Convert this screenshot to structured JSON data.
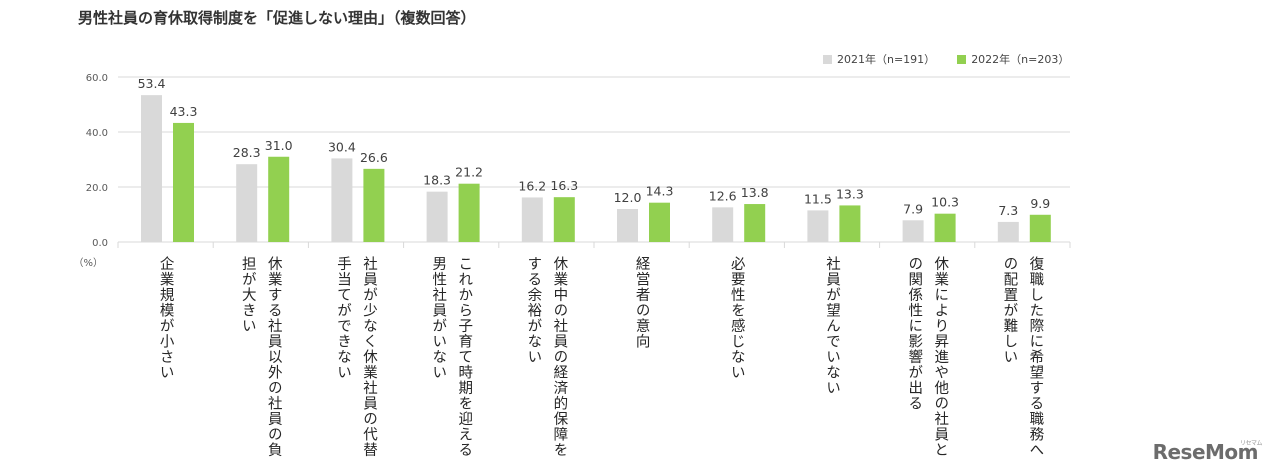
{
  "title": "男性社員の育休取得制度を「促進しない理由」（複数回答）",
  "legend": {
    "series_2021": "2021年（n=191）",
    "series_2022": "2022年（n=203）"
  },
  "colors": {
    "series_2021": "#d9d9d9",
    "series_2022": "#92d050",
    "grid": "#d9d9d9",
    "text": "#404040"
  },
  "unit_label": "（%）",
  "watermark": "ReseMom",
  "watermark_sub": "リセマム",
  "chart_data": {
    "type": "bar",
    "title": "男性社員の育休取得制度を「促進しない理由」（複数回答）",
    "ylim": [
      0,
      60
    ],
    "yticks": [
      "0.0",
      "20.0",
      "40.0",
      "60.0"
    ],
    "ylabel": "（%）",
    "grid": true,
    "legend_position": "top-right",
    "categories": [
      [
        "企業規模が小さい"
      ],
      [
        "休業する社員以外の社員の負",
        "担が大きい"
      ],
      [
        "社員が少なく休業社員の代替",
        "手当てができない"
      ],
      [
        "これから子育て時期を迎える",
        "男性社員がいない"
      ],
      [
        "休業中の社員の経済的保障を",
        "する余裕がない"
      ],
      [
        "経営者の意向"
      ],
      [
        "必要性を感じない"
      ],
      [
        "社員が望んでいない"
      ],
      [
        "休業により昇進や他の社員と",
        "の関係性に影響が出る"
      ],
      [
        "復職した際に希望する職務へ",
        "の配置が難しい"
      ]
    ],
    "series": [
      {
        "name": "2021年（n=191）",
        "values": [
          53.4,
          28.3,
          30.4,
          18.3,
          16.2,
          12.0,
          12.6,
          11.5,
          7.9,
          7.3
        ]
      },
      {
        "name": "2022年（n=203）",
        "values": [
          43.3,
          31.0,
          26.6,
          21.2,
          16.3,
          14.3,
          13.8,
          13.3,
          10.3,
          9.9
        ]
      }
    ]
  }
}
